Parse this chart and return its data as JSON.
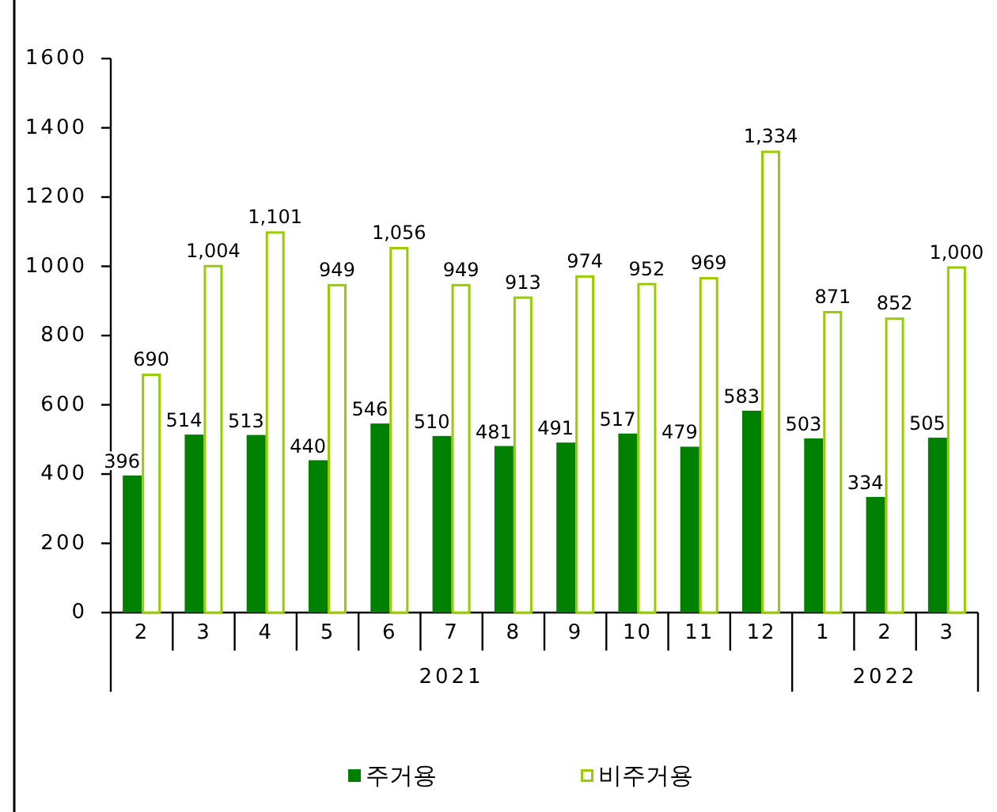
{
  "chart_data": {
    "type": "bar",
    "categories": [
      "2",
      "3",
      "4",
      "5",
      "6",
      "7",
      "8",
      "9",
      "10",
      "11",
      "12",
      "1",
      "2",
      "3"
    ],
    "series": [
      {
        "name": "주거용",
        "color": "#008000",
        "values": [
          396,
          514,
          513,
          440,
          546,
          510,
          481,
          491,
          517,
          479,
          583,
          503,
          334,
          505
        ],
        "value_labels": [
          "396",
          "514",
          "513",
          "440",
          "546",
          "510",
          "481",
          "491",
          "517",
          "479",
          "583",
          "503",
          "334",
          "505"
        ]
      },
      {
        "name": "비주거용",
        "color": "#99cc00",
        "values": [
          690,
          1004,
          1101,
          949,
          1056,
          949,
          913,
          974,
          952,
          969,
          1334,
          871,
          852,
          1000
        ],
        "value_labels": [
          "690",
          "1,004",
          "1,101",
          "949",
          "1,056",
          "949",
          "913",
          "974",
          "952",
          "969",
          "1,334",
          "871",
          "852",
          "1,000"
        ]
      }
    ],
    "ylim": [
      0,
      1600
    ],
    "yticks": [
      0,
      200,
      400,
      600,
      800,
      1000,
      1200,
      1400,
      1600
    ],
    "legend": "bottom",
    "annotations": [
      "2021",
      "2022"
    ]
  }
}
